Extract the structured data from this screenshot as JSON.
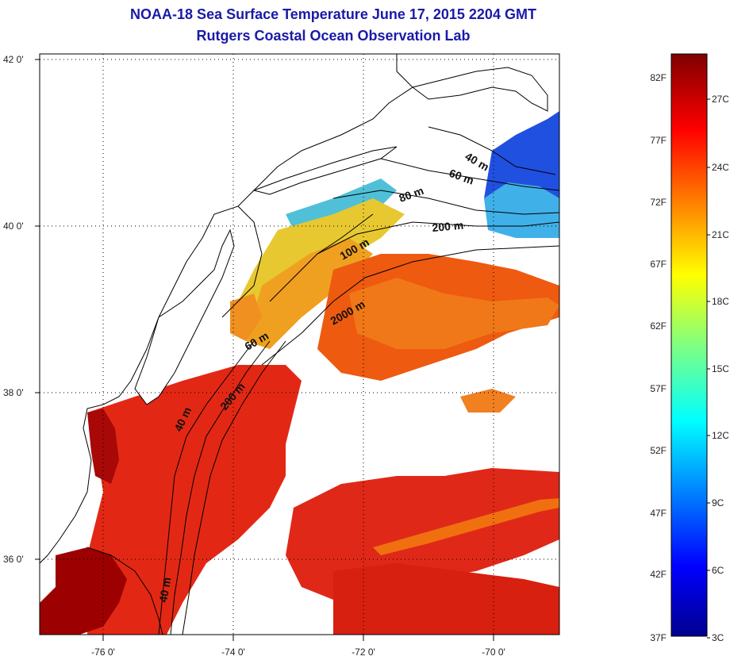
{
  "header": {
    "title_line1": "NOAA-18 Sea Surface Temperature June 17, 2015 2204 GMT",
    "title_line2": "Rutgers Coastal Ocean Observation Lab"
  },
  "map": {
    "lat_ticks": [
      {
        "value": 42,
        "label": "42 0'"
      },
      {
        "value": 40,
        "label": "40 0'"
      },
      {
        "value": 38,
        "label": "38 0'"
      },
      {
        "value": 36,
        "label": "36 0'"
      }
    ],
    "lon_ticks": [
      {
        "value": -76,
        "label": "-76 0'"
      },
      {
        "value": -74,
        "label": "-74 0'"
      },
      {
        "value": -72,
        "label": "-72 0'"
      },
      {
        "value": -70,
        "label": "-70 0'"
      }
    ],
    "contour_labels": [
      "40 m",
      "60 m",
      "80 m",
      "200 m",
      "100 m",
      "2000 m",
      "60 m",
      "200 m",
      "40 m",
      "40 m"
    ],
    "colors": {
      "land_bg": "#ffffff",
      "coast_line": "#000000",
      "warm": "#e02010",
      "hot": "#9a0000",
      "orange": "#f08010",
      "yellow": "#f0c020",
      "cool": "#30a0e0",
      "cold": "#1040e0"
    }
  },
  "colorbar": {
    "fahrenheit_labels": [
      "82F",
      "77F",
      "72F",
      "67F",
      "62F",
      "57F",
      "52F",
      "47F",
      "42F",
      "37F"
    ],
    "celsius_labels": [
      "27C",
      "24C",
      "21C",
      "18C",
      "15C",
      "12C",
      "9C",
      "6C",
      "3C"
    ]
  }
}
